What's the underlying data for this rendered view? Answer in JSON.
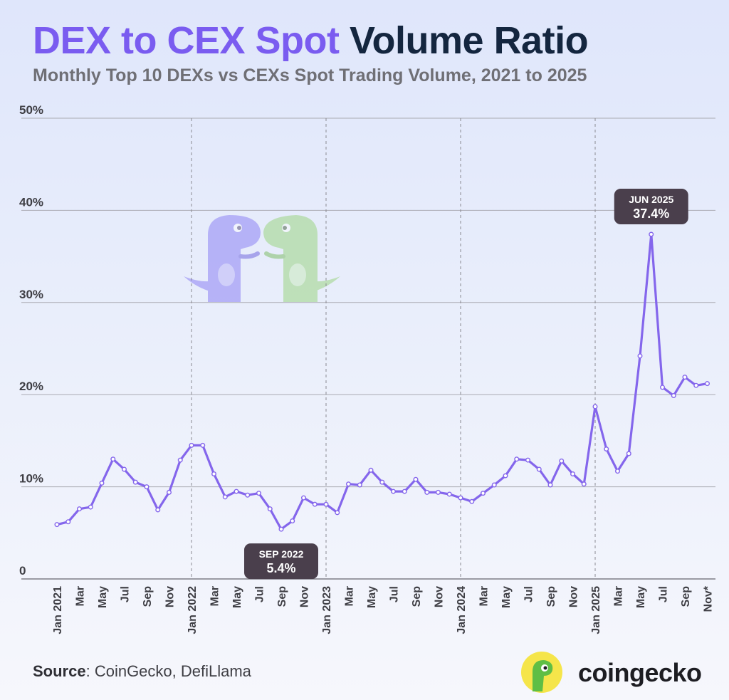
{
  "title_part1": "DEX to CEX Spot",
  "title_part2": "Volume Ratio",
  "subtitle": "Monthly Top 10 DEXs vs CEXs Spot Trading Volume, 2021 to 2025",
  "source_label": "Source",
  "source_text": ": CoinGecko, DefiLlama",
  "brand": "coingecko",
  "colors": {
    "title_accent": "#7a5cf0",
    "title_dark": "#14263f",
    "line": "#8466ec",
    "callout_bg": "#4a3f4c",
    "gridline": "#aaaab2"
  },
  "chart_data": {
    "type": "line",
    "title": "DEX to CEX Spot Volume Ratio",
    "subtitle": "Monthly Top 10 DEXs vs CEXs Spot Trading Volume, 2021 to 2025",
    "y_ticks": [
      "0",
      "10%",
      "20%",
      "30%",
      "40%",
      "50%"
    ],
    "ylim": [
      0,
      50
    ],
    "x_tick_labels": [
      "Jan 2021",
      "Mar",
      "May",
      "Jul",
      "Sep",
      "Nov",
      "Jan 2022",
      "Mar",
      "May",
      "Jul",
      "Sep",
      "Nov",
      "Jan 2023",
      "Mar",
      "May",
      "Jul",
      "Sep",
      "Nov",
      "Jan 2024",
      "Mar",
      "May",
      "Jul",
      "Sep",
      "Nov",
      "Jan 2025",
      "Mar",
      "May",
      "Jul",
      "Sep",
      "Nov*"
    ],
    "year_separators": [
      "Jan 2022",
      "Jan 2023",
      "Jan 2024",
      "Jan 2025"
    ],
    "series": [
      {
        "values": [
          5.9,
          6.2,
          7.6,
          7.8,
          10.4,
          13.0,
          11.9,
          10.5,
          10.0,
          7.5,
          9.4,
          12.9,
          14.5,
          14.5,
          11.4,
          8.9,
          9.5,
          9.1,
          9.3,
          7.6,
          5.4,
          6.3,
          8.8,
          8.1,
          8.1,
          7.2,
          10.3,
          10.2,
          11.8,
          10.5,
          9.5,
          9.5,
          10.8,
          9.4,
          9.4,
          9.2,
          8.8,
          8.4,
          9.3,
          10.2,
          11.2,
          13.0,
          12.9,
          11.9,
          10.2,
          12.8,
          11.4,
          10.3,
          18.7,
          14.1,
          11.7,
          13.6,
          24.2,
          37.4,
          20.8,
          19.9,
          21.9,
          21.0,
          21.2
        ]
      }
    ],
    "x_range": [
      "Jan 2021",
      "Nov 2025"
    ],
    "grid": "horizontal",
    "annotations": [
      {
        "label": "JUN 2025",
        "value": "37.4%",
        "point_index": 53,
        "position": "above"
      },
      {
        "label": "SEP 2022",
        "value": "5.4%",
        "point_index": 20,
        "position": "below"
      }
    ]
  }
}
